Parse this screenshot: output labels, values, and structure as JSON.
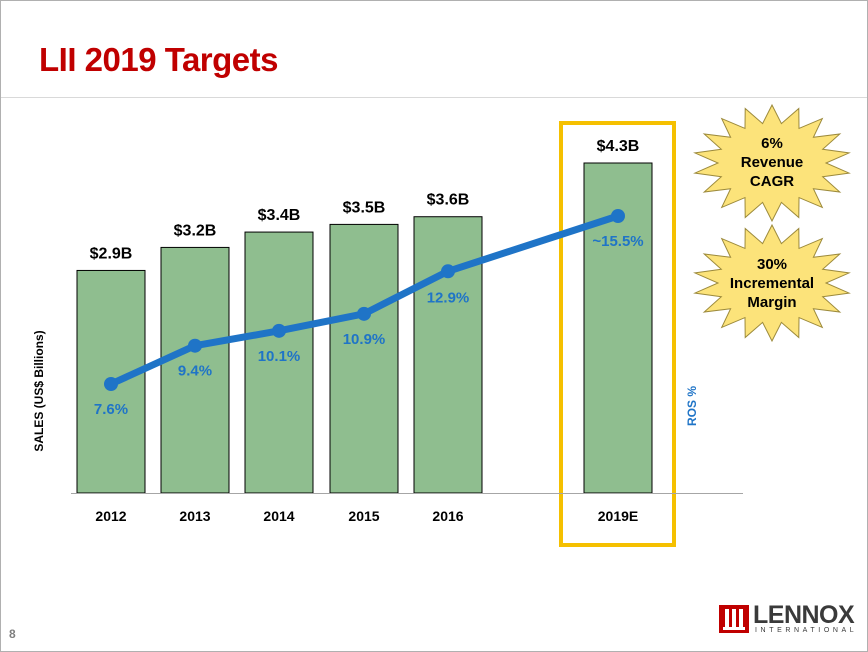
{
  "slide": {
    "title": "LII 2019 Targets",
    "page_number": "8"
  },
  "chart_data": {
    "type": "bar",
    "categories": [
      "2012",
      "2013",
      "2014",
      "2015",
      "2016",
      "2019E"
    ],
    "series": [
      {
        "values": [
          2.9,
          3.2,
          3.4,
          3.5,
          3.6,
          4.3
        ],
        "labels": [
          "$2.9B",
          "$3.2B",
          "$3.4B",
          "$3.5B",
          "$3.6B",
          "$4.3B"
        ],
        "color": "#8fbe8f"
      },
      {
        "type": "line",
        "values": [
          7.6,
          9.4,
          10.1,
          10.9,
          12.9,
          15.5
        ],
        "labels": [
          "7.6%",
          "9.4%",
          "10.1%",
          "10.9%",
          "12.9%",
          "~15.5%"
        ],
        "color": "#1f74c7"
      }
    ],
    "ylabel": "SALES (US$ Billions)",
    "y2label": "ROS %",
    "ylim": [
      0,
      5
    ],
    "highlight_category": "2019E",
    "highlight_color": "#f5c000",
    "grid": false
  },
  "callouts": [
    {
      "lines": [
        "6%",
        "Revenue",
        "CAGR"
      ]
    },
    {
      "lines": [
        "30%",
        "Incremental",
        "Margin"
      ]
    }
  ],
  "logo": {
    "name": "LENNOX",
    "subtitle": "INTERNATIONAL",
    "color": "#c00000"
  }
}
